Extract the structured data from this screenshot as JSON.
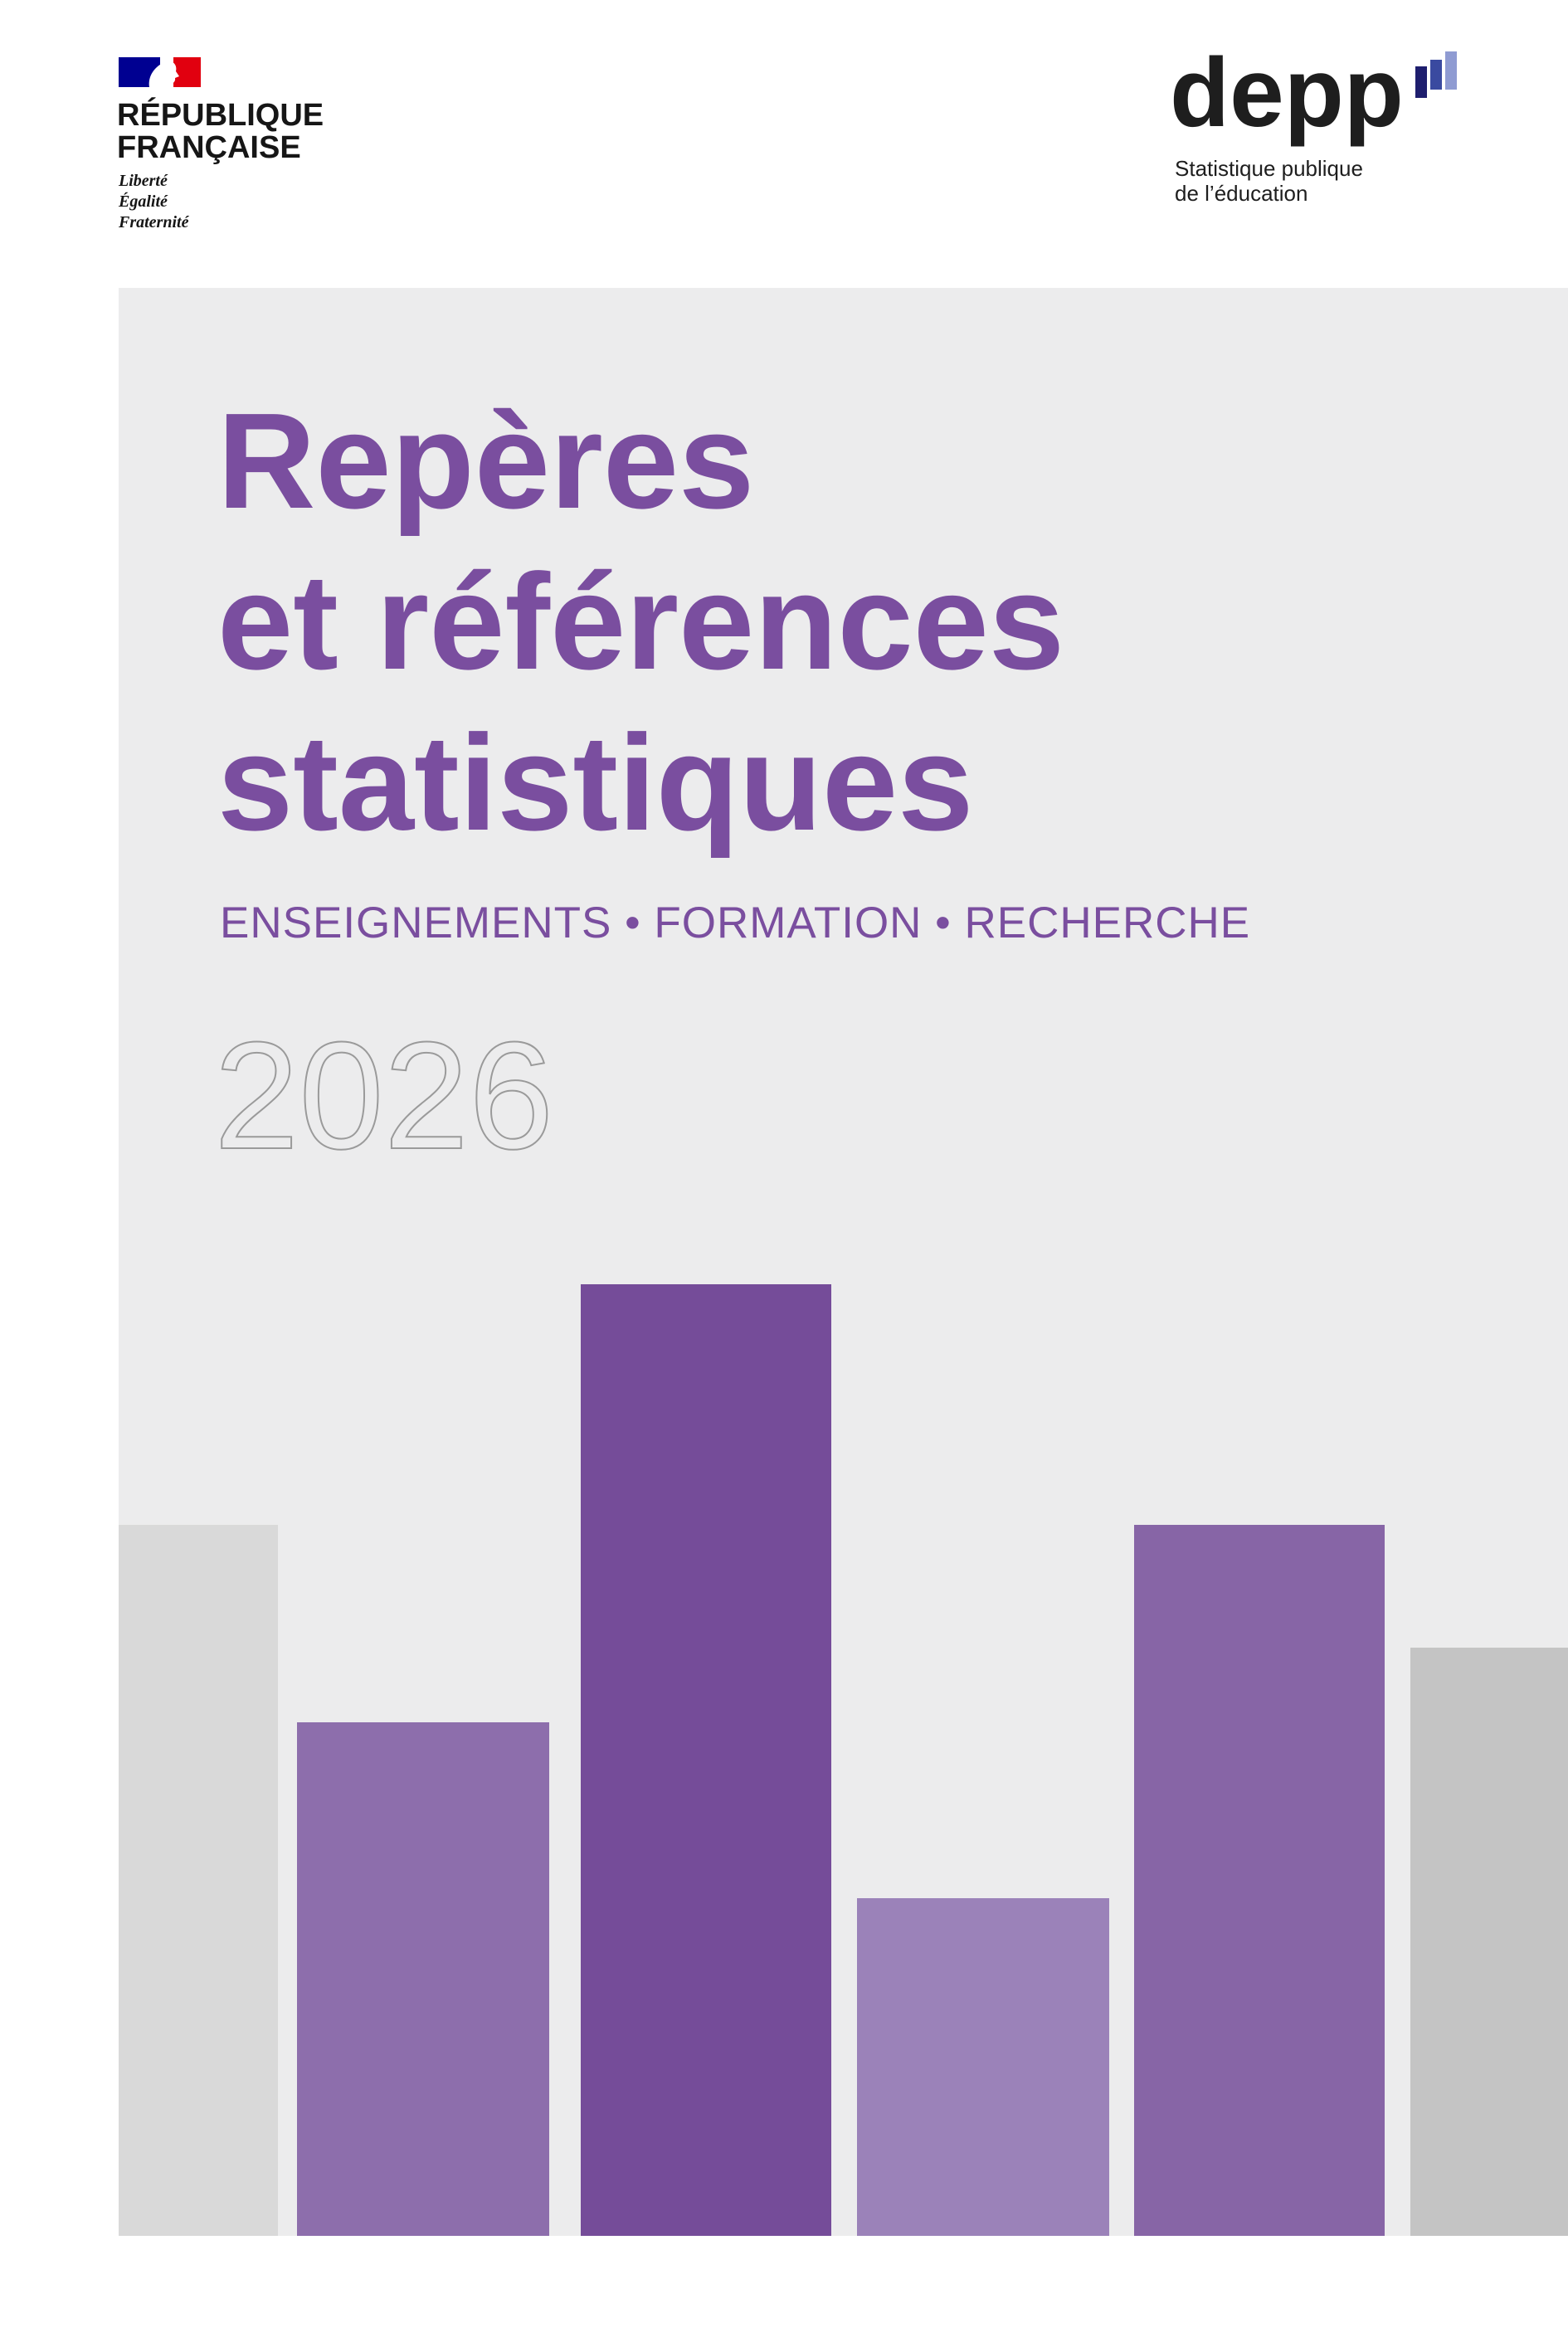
{
  "header": {
    "republique": {
      "line1": "RÉPUBLIQUE",
      "line2": "FRANÇAISE",
      "motto": [
        "Liberté",
        "Égalité",
        "Fraternité"
      ]
    },
    "depp": {
      "name": "depp",
      "tagline": [
        "Statistique publique",
        "de l’éducation"
      ]
    }
  },
  "cover": {
    "title": [
      "Repères",
      "et références",
      "statistiques"
    ],
    "subtitle": "ENSEIGNEMENTS • FORMATION • RECHERCHE",
    "year": "2026"
  }
}
